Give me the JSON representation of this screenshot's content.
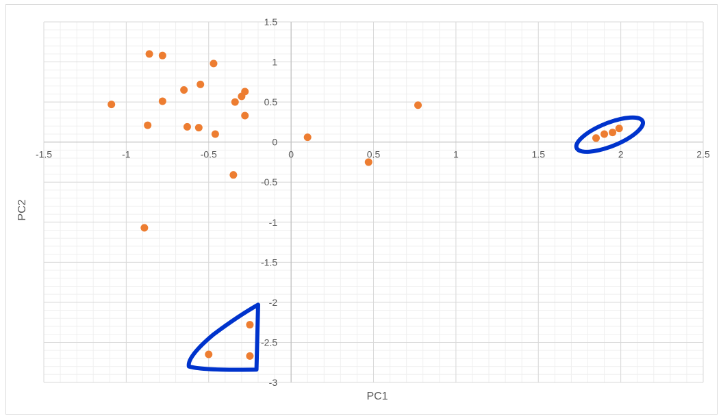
{
  "chart_data": {
    "type": "scatter",
    "xlabel": "PC1",
    "ylabel": "PC2",
    "xlim": [
      -1.5,
      2.5
    ],
    "ylim": [
      -3,
      1.5
    ],
    "x_ticks": [
      -1.5,
      -1,
      -0.5,
      0,
      0.5,
      1,
      1.5,
      2,
      2.5
    ],
    "y_ticks": [
      -3,
      -2.5,
      -2,
      -1.5,
      -1,
      -0.5,
      0,
      0.5,
      1,
      1.5
    ],
    "x_tick_labels": [
      "-1.5",
      "-1",
      "-0.5",
      "0",
      "0.5",
      "1",
      "1.5",
      "2",
      "2.5"
    ],
    "y_tick_labels": [
      "-3",
      "-2.5",
      "-2",
      "-1.5",
      "-1",
      "-0.5",
      "0",
      "0.5",
      "1",
      "1.5"
    ],
    "grid": true,
    "minor_grid": true,
    "marker_color": "#ED7D31",
    "highlight_color": "#0033CC",
    "series": [
      {
        "points": [
          {
            "x": -1.09,
            "y": 0.47
          },
          {
            "x": -0.86,
            "y": 1.1
          },
          {
            "x": -0.78,
            "y": 1.08
          },
          {
            "x": -0.47,
            "y": 0.98
          },
          {
            "x": -0.65,
            "y": 0.65
          },
          {
            "x": -0.55,
            "y": 0.72
          },
          {
            "x": -0.78,
            "y": 0.51
          },
          {
            "x": -0.34,
            "y": 0.5
          },
          {
            "x": -0.3,
            "y": 0.57
          },
          {
            "x": -0.28,
            "y": 0.63
          },
          {
            "x": -0.28,
            "y": 0.33
          },
          {
            "x": -0.87,
            "y": 0.21
          },
          {
            "x": -0.63,
            "y": 0.19
          },
          {
            "x": -0.56,
            "y": 0.18
          },
          {
            "x": -0.46,
            "y": 0.1
          },
          {
            "x": -0.35,
            "y": -0.41
          },
          {
            "x": -0.89,
            "y": -1.07
          },
          {
            "x": 0.1,
            "y": 0.06
          },
          {
            "x": 0.47,
            "y": -0.25
          },
          {
            "x": 0.77,
            "y": 0.46
          },
          {
            "x": 1.85,
            "y": 0.05
          },
          {
            "x": 1.9,
            "y": 0.1
          },
          {
            "x": 1.95,
            "y": 0.12
          },
          {
            "x": 1.99,
            "y": 0.17
          },
          {
            "x": -0.25,
            "y": -2.28
          },
          {
            "x": -0.5,
            "y": -2.65
          },
          {
            "x": -0.25,
            "y": -2.67
          }
        ]
      }
    ],
    "annotations": [
      {
        "shape": "ellipse-loop",
        "encloses": "points near (1.85..2.0, 0.05..0.17)"
      },
      {
        "shape": "triangle-loop",
        "encloses": "points near (-0.5..-0.25, -2.67..-2.28)"
      }
    ]
  }
}
